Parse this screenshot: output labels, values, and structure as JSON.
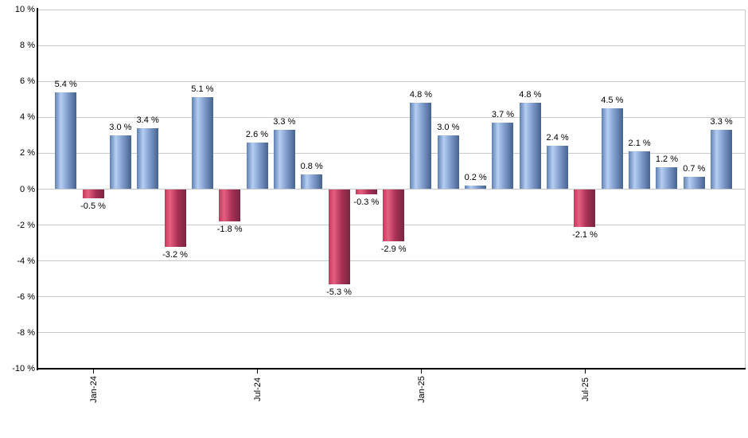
{
  "chart_data": {
    "type": "bar",
    "title": "",
    "xlabel": "",
    "ylabel": "",
    "unit": "%",
    "ylim": [
      -10,
      10
    ],
    "y_tick_step": 2,
    "grid": true,
    "legend": false,
    "values": [
      5.4,
      -0.5,
      3.0,
      3.4,
      -3.2,
      5.1,
      -1.8,
      2.6,
      3.3,
      0.8,
      -5.3,
      -0.3,
      -2.9,
      4.8,
      3.0,
      0.2,
      3.7,
      4.8,
      2.4,
      -2.1,
      4.5,
      2.1,
      1.2,
      0.7,
      3.3
    ],
    "value_label_suffix": " %",
    "x_ticks": [
      {
        "label": "Jan-24",
        "bar_index": 1
      },
      {
        "label": "Jul-24",
        "bar_index": 7
      },
      {
        "label": "Jan-25",
        "bar_index": 13
      },
      {
        "label": "Jul-25",
        "bar_index": 19
      }
    ],
    "y_tick_labels": [
      "10 %",
      "8 %",
      "6 %",
      "4 %",
      "2 %",
      "0 %",
      "-2 %",
      "-4 %",
      "-6 %",
      "-8 %",
      "-10 %"
    ],
    "colors": {
      "positive_edge_left": "#5e80b4",
      "positive_highlight": "#b5cef2",
      "positive_mid": "#7f9bcc",
      "positive_edge_right": "#46638e",
      "negative_edge_left": "#c43a5e",
      "negative_highlight": "#e55f7f",
      "negative_mid": "#aa3055",
      "negative_edge_right": "#772640",
      "grid": "#c8c8c8",
      "axis": "#000000",
      "label_text": "#000000",
      "background": "#ffffff"
    }
  }
}
